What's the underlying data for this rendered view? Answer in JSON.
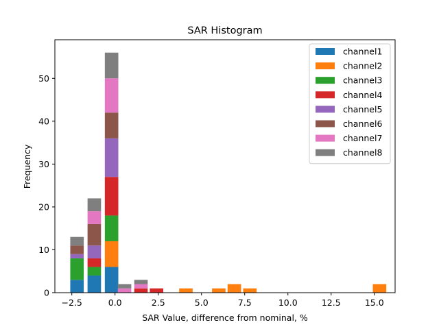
{
  "chart_data": {
    "type": "bar",
    "stacked": true,
    "title": "SAR Histogram",
    "xlabel": "SAR Value, difference from nominal, %",
    "ylabel": "Frequency",
    "xlim": [
      -3.48,
      16.2
    ],
    "ylim": [
      0,
      59
    ],
    "xticks": [
      -2.5,
      0.0,
      2.5,
      5.0,
      7.5,
      10.0,
      12.5,
      15.0
    ],
    "xtick_labels": [
      "−2.5",
      "0.0",
      "2.5",
      "5.0",
      "7.5",
      "10.0",
      "12.5",
      "15.0"
    ],
    "yticks": [
      0,
      10,
      20,
      30,
      40,
      50
    ],
    "ytick_labels": [
      "0",
      "10",
      "20",
      "30",
      "40",
      "50"
    ],
    "bar_width": 0.78,
    "bins": [
      -2.2,
      -1.2,
      -0.2,
      0.55,
      1.5,
      2.4,
      4.1,
      6.0,
      6.9,
      7.8,
      15.3
    ],
    "legend_position": "top-right",
    "series": [
      {
        "name": "channel1",
        "color": "#1f77b4",
        "values": [
          3,
          4,
          6,
          0,
          0,
          0,
          0,
          0,
          0,
          0,
          0
        ]
      },
      {
        "name": "channel2",
        "color": "#ff7f0e",
        "values": [
          0,
          0,
          6,
          0,
          0,
          0,
          1,
          1,
          2,
          1,
          2
        ]
      },
      {
        "name": "channel3",
        "color": "#2ca02c",
        "values": [
          5,
          2,
          6,
          0,
          0,
          0,
          0,
          0,
          0,
          0,
          0
        ]
      },
      {
        "name": "channel4",
        "color": "#d62728",
        "values": [
          0,
          2,
          9,
          0,
          1,
          1,
          0,
          0,
          0,
          0,
          0
        ]
      },
      {
        "name": "channel5",
        "color": "#9467bd",
        "values": [
          1,
          3,
          9,
          0,
          0,
          0,
          0,
          0,
          0,
          0,
          0
        ]
      },
      {
        "name": "channel6",
        "color": "#8c564b",
        "values": [
          2,
          5,
          6,
          0,
          0,
          0,
          0,
          0,
          0,
          0,
          0
        ]
      },
      {
        "name": "channel7",
        "color": "#e377c2",
        "values": [
          0,
          3,
          8,
          1,
          1,
          0,
          0,
          0,
          0,
          0,
          0
        ]
      },
      {
        "name": "channel8",
        "color": "#7f7f7f",
        "values": [
          2,
          3,
          6,
          1,
          1,
          0,
          0,
          0,
          0,
          0,
          0
        ]
      }
    ]
  }
}
